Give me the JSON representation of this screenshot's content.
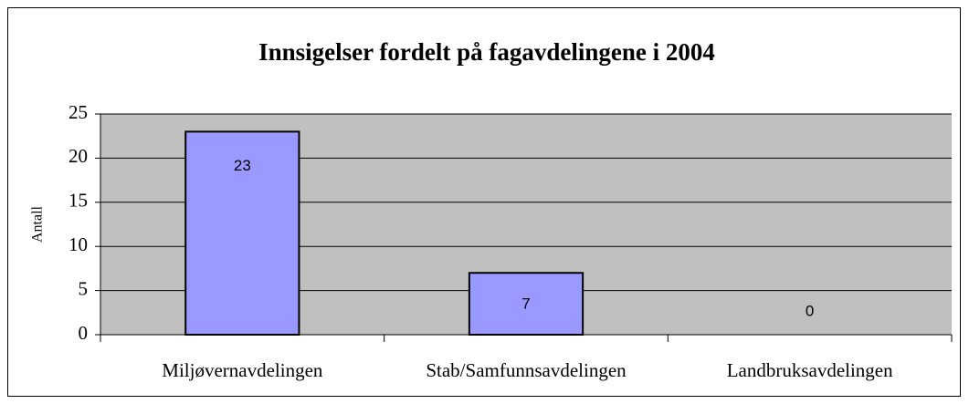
{
  "chart_data": {
    "type": "bar",
    "title": "Innsigelser fordelt på fagavdelingene i 2004",
    "y_label": "Antall",
    "categories": [
      "Miljøvernavdelingen",
      "Stab/Samfunnsavdelingen",
      "Landbruksavdelingen"
    ],
    "values": [
      23,
      7,
      0
    ],
    "color": "#9999ff",
    "ylim": [
      0,
      25
    ],
    "yticks": [
      0,
      5,
      10,
      15,
      20,
      25
    ],
    "grid": true
  }
}
